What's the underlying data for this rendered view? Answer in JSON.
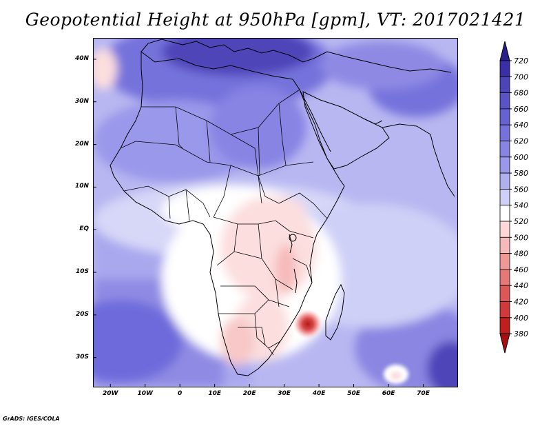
{
  "title": "Geopotential Height at 950hPa [gpm], VT: 2017021421",
  "credit": "GrADS: IGES/COLA",
  "axes": {
    "x_ticks": [
      "20W",
      "10W",
      "0",
      "10E",
      "20E",
      "30E",
      "40E",
      "50E",
      "60E",
      "70E"
    ],
    "y_ticks": [
      "40N",
      "30N",
      "20N",
      "10N",
      "EQ",
      "10S",
      "20S",
      "30S"
    ]
  },
  "map": {
    "lon_range": [
      -25,
      80
    ],
    "lat_range": [
      -37,
      45
    ]
  },
  "colorbar": {
    "levels": [
      "720",
      "700",
      "680",
      "660",
      "640",
      "620",
      "600",
      "580",
      "560",
      "540",
      "520",
      "500",
      "480",
      "460",
      "440",
      "420",
      "400",
      "380"
    ],
    "colors": [
      "#2b1e8c",
      "#3a2fa6",
      "#4d44b8",
      "#5a53c6",
      "#6762d2",
      "#7672dc",
      "#8784e4",
      "#9a98ea",
      "#b0aff0",
      "#cfd0f7",
      "#ffffff",
      "#fcd9d9",
      "#f6b9b9",
      "#ef9898",
      "#e67878",
      "#dc5858",
      "#d03a3a",
      "#c01f1f",
      "#a90f0f"
    ]
  }
}
